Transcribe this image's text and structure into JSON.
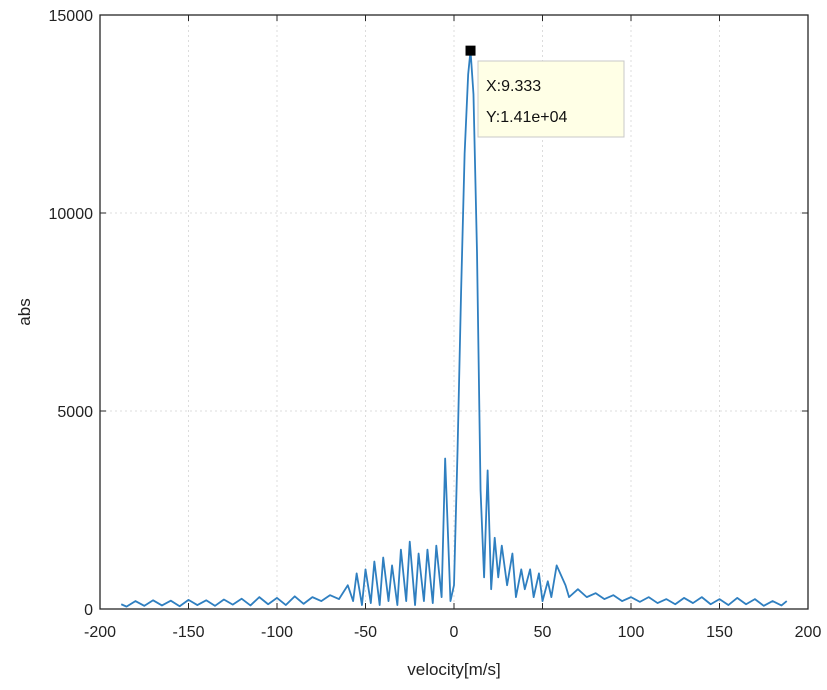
{
  "chart_data": {
    "type": "line",
    "title": "",
    "xlabel": "velocity[m/s]",
    "ylabel": "abs",
    "xlim": [
      -200,
      200
    ],
    "ylim": [
      0,
      15000
    ],
    "x_ticks": [
      "-200",
      "-150",
      "-100",
      "-50",
      "0",
      "50",
      "100",
      "150",
      "200"
    ],
    "y_ticks": [
      "0",
      "5000",
      "10000",
      "15000"
    ],
    "grid": true,
    "series": [
      {
        "color": "#2f7fc0",
        "x": [
          -188,
          -185,
          -180,
          -175,
          -170,
          -165,
          -160,
          -155,
          -150,
          -145,
          -140,
          -135,
          -130,
          -125,
          -120,
          -115,
          -110,
          -105,
          -100,
          -95,
          -90,
          -85,
          -80,
          -75,
          -70,
          -65,
          -60,
          -57,
          -55,
          -52,
          -50,
          -47,
          -45,
          -42,
          -40,
          -37,
          -35,
          -32,
          -30,
          -27,
          -25,
          -22,
          -20,
          -17,
          -15,
          -12,
          -10,
          -7,
          -5,
          -2,
          0,
          2,
          4,
          6,
          8,
          9.333,
          11,
          13,
          15,
          17,
          19,
          21,
          23,
          25,
          27,
          30,
          33,
          35,
          38,
          40,
          43,
          45,
          48,
          50,
          53,
          55,
          58,
          60,
          63,
          65,
          70,
          75,
          80,
          85,
          90,
          95,
          100,
          105,
          110,
          115,
          120,
          125,
          130,
          135,
          140,
          145,
          150,
          155,
          160,
          165,
          170,
          175,
          180,
          185,
          188
        ],
        "y": [
          120,
          60,
          200,
          80,
          220,
          90,
          210,
          70,
          230,
          100,
          220,
          80,
          240,
          110,
          260,
          90,
          300,
          120,
          280,
          100,
          320,
          130,
          300,
          200,
          350,
          250,
          600,
          200,
          900,
          100,
          1000,
          150,
          1200,
          100,
          1300,
          200,
          1100,
          100,
          1500,
          200,
          1700,
          100,
          1400,
          200,
          1500,
          150,
          1600,
          300,
          3800,
          200,
          600,
          4000,
          8000,
          11500,
          13500,
          14100,
          13000,
          9000,
          3000,
          800,
          3500,
          500,
          1800,
          800,
          1600,
          600,
          1400,
          300,
          1000,
          500,
          1000,
          300,
          900,
          200,
          700,
          300,
          1100,
          900,
          600,
          300,
          500,
          300,
          400,
          250,
          350,
          200,
          300,
          180,
          300,
          150,
          250,
          120,
          280,
          150,
          300,
          120,
          250,
          100,
          280,
          120,
          250,
          80,
          200,
          90,
          200
        ]
      }
    ],
    "annotation": {
      "x": 9.333,
      "y": 14100,
      "x_label": "X:9.333",
      "y_label": "Y:1.41e+04"
    }
  }
}
